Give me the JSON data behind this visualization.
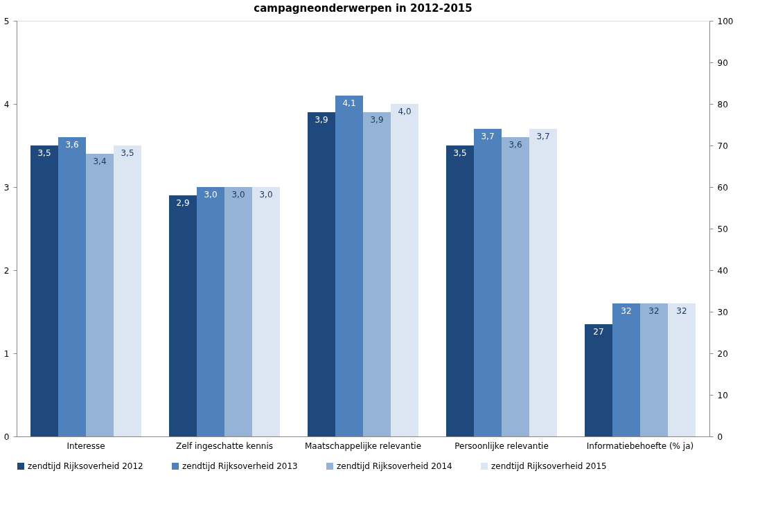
{
  "chart_data": {
    "type": "bar",
    "title": "campagneonderwerpen in 2012-2015",
    "categories": [
      "Interesse",
      "Zelf ingeschatte kennis",
      "Maatschappelijke relevantie",
      "Persoonlijke relevantie",
      "Informatiebehoefte (% ja)"
    ],
    "series": [
      {
        "name": "zendtijd Rijksoverheid 2012",
        "color": "#1f497d",
        "values": [
          3.5,
          2.9,
          3.9,
          3.5,
          null
        ],
        "value_labels": [
          "3,5",
          "2,9",
          "3,9",
          "3,5",
          null
        ]
      },
      {
        "name": "zendtijd Rijksoverheid 2013",
        "color": "#4f81bd",
        "values": [
          3.6,
          3.0,
          4.1,
          3.7,
          null
        ],
        "value_labels": [
          "3,6",
          "3,0",
          "4,1",
          "3,7",
          null
        ]
      },
      {
        "name": "zendtijd Rijksoverheid 2014",
        "color": "#95b3d7",
        "values": [
          3.4,
          3.0,
          3.9,
          3.6,
          null
        ],
        "value_labels": [
          "3,4",
          "3,0",
          "3,9",
          "3,6",
          null
        ]
      },
      {
        "name": "zendtijd Rijksoverheid 2015",
        "color": "#dce6f2",
        "values": [
          3.5,
          3.0,
          4.0,
          3.7,
          null
        ],
        "value_labels": [
          "3,5",
          "3,0",
          "4,0",
          "3,7",
          null
        ]
      },
      {
        "axis": "y2",
        "color": "#1f497d",
        "values": [
          null,
          null,
          null,
          null,
          27
        ],
        "value_labels": [
          null,
          null,
          null,
          null,
          "27"
        ]
      },
      {
        "axis": "y2",
        "color": "#4f81bd",
        "values": [
          null,
          null,
          null,
          null,
          32
        ],
        "value_labels": [
          null,
          null,
          null,
          null,
          "32"
        ]
      },
      {
        "axis": "y2",
        "color": "#95b3d7",
        "values": [
          null,
          null,
          null,
          null,
          32
        ],
        "value_labels": [
          null,
          null,
          null,
          null,
          "32"
        ]
      },
      {
        "axis": "y2",
        "color": "#dce6f2",
        "values": [
          null,
          null,
          null,
          null,
          32
        ],
        "value_labels": [
          null,
          null,
          null,
          null,
          "32"
        ]
      }
    ],
    "ylim": [
      0,
      5
    ],
    "yticks": [
      0,
      1,
      2,
      3,
      4,
      5
    ],
    "y2lim": [
      0,
      100
    ],
    "y2ticks": [
      0,
      10,
      20,
      30,
      40,
      50,
      60,
      70,
      80,
      90,
      100
    ],
    "grid": false,
    "legend": "bottom"
  }
}
